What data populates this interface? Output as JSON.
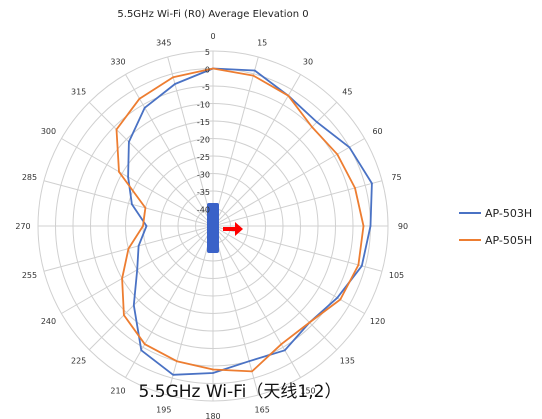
{
  "chart_data": {
    "type": "polar-line",
    "title": "5.5GHz Wi-Fi (R0) Average Elevation 0",
    "caption": "5.5GHz Wi-Fi（天线1,2）",
    "angle_ticks": [
      "0",
      "15",
      "30",
      "45",
      "60",
      "75",
      "90",
      "105",
      "120",
      "135",
      "150",
      "165",
      "180",
      "195",
      "210",
      "225",
      "240",
      "255",
      "270",
      "285",
      "300",
      "315",
      "330",
      "345"
    ],
    "angle_values": [
      0,
      15,
      30,
      45,
      60,
      75,
      90,
      105,
      120,
      135,
      150,
      165,
      180,
      195,
      210,
      225,
      240,
      255,
      270,
      285,
      300,
      315,
      330,
      345
    ],
    "radial_ticks": [
      "5",
      "0",
      "-5",
      "-10",
      "-15",
      "-20",
      "-25",
      "-30",
      "-35",
      "-40"
    ],
    "rlim": [
      -45,
      5
    ],
    "legend_position": "right",
    "colors": {
      "AP-503H": "#4a72c4",
      "AP-505H": "#ed7d31",
      "grid": "#d0d0d0",
      "marker_body": "#3a62c8",
      "marker_arrow": "#ff0000"
    },
    "series": [
      {
        "name": "AP-503H",
        "values": [
          0,
          1,
          -2,
          -3,
          0,
          2,
          0,
          -1,
          -4,
          -6,
          -4,
          -5,
          -3,
          -1,
          -4,
          -13,
          -20,
          -23,
          -26,
          -21,
          -17,
          -11,
          -6,
          -3
        ]
      },
      {
        "name": "AP-505H",
        "values": [
          0,
          -0.5,
          -2,
          -5,
          -4,
          -3,
          -2,
          -2,
          -3,
          -6,
          -6,
          -2,
          -4,
          -5,
          -6,
          -9,
          -15,
          -20,
          -25,
          -25,
          -14,
          -6,
          -3,
          -1
        ]
      }
    ]
  }
}
